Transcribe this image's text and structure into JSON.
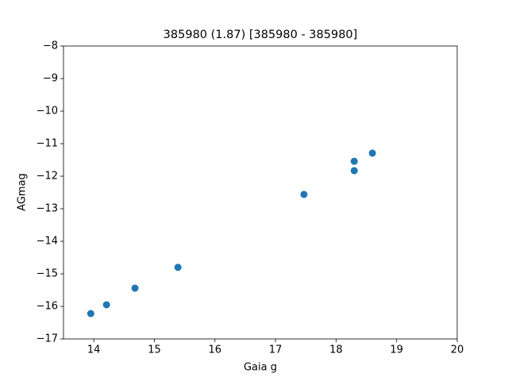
{
  "chart_data": {
    "type": "scatter",
    "title": "385980 (1.87) [385980 - 385980]",
    "x_label": "Gaia g",
    "y_label": "AGmag",
    "color": "#1f77b4",
    "x": [
      13.95,
      14.21,
      14.68,
      15.39,
      17.47,
      18.3,
      18.3,
      18.6
    ],
    "values": [
      -16.22,
      -15.95,
      -15.44,
      -14.8,
      -12.56,
      -11.54,
      -11.83,
      -11.29
    ],
    "xlim": [
      13.5,
      20
    ],
    "xticks": [
      14,
      15,
      16,
      17,
      18,
      19,
      20
    ],
    "ylim": [
      -17,
      -8
    ],
    "yticks": [
      {
        "value": -17,
        "label": "−17"
      },
      {
        "value": -16,
        "label": "−16"
      },
      {
        "value": -15,
        "label": "−15"
      },
      {
        "value": -14,
        "label": "−14"
      },
      {
        "value": -13,
        "label": "−13"
      },
      {
        "value": -12,
        "label": "−12"
      },
      {
        "value": -11,
        "label": "−11"
      },
      {
        "value": -10,
        "label": "−10"
      },
      {
        "value": -9,
        "label": "−9"
      },
      {
        "value": -8,
        "label": "−8"
      }
    ]
  }
}
